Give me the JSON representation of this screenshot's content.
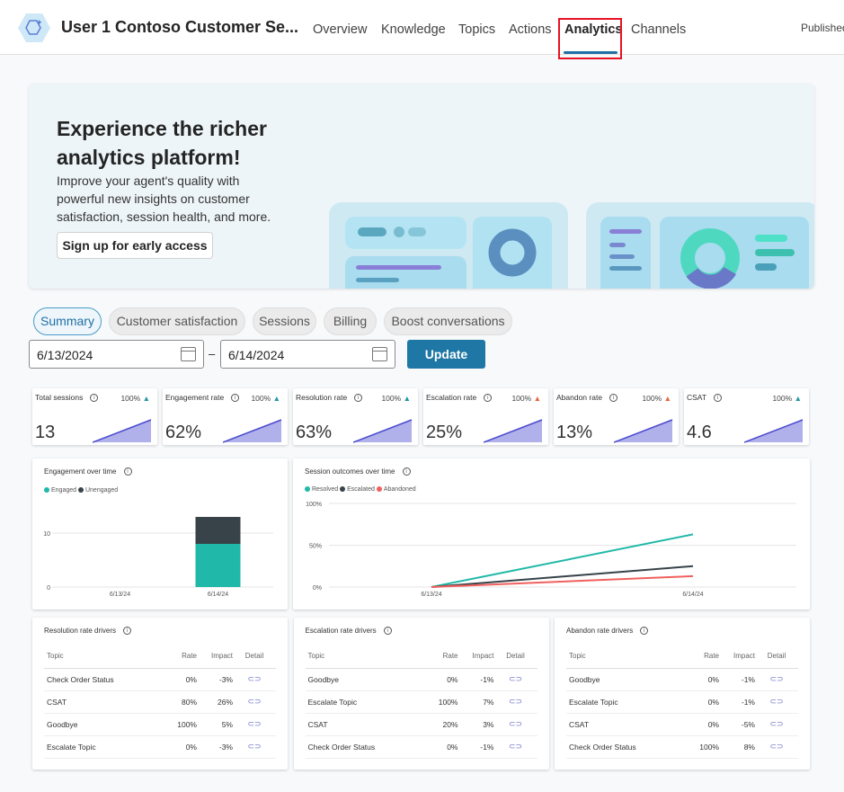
{
  "header": {
    "title": "User 1 Contoso Customer Se...",
    "nav": [
      "Overview",
      "Knowledge",
      "Topics",
      "Actions",
      "Analytics",
      "Channels"
    ],
    "active": "Analytics",
    "status": "Published"
  },
  "banner": {
    "heading": "Experience the richer analytics platform!",
    "body": "Improve your agent's quality with powerful new insights on customer satisfaction, session health, and more.",
    "button": "Sign up for early access"
  },
  "tabs": [
    "Summary",
    "Customer satisfaction",
    "Sessions",
    "Billing",
    "Boost conversations"
  ],
  "dates": {
    "from": "6/13/2024",
    "to": "6/14/2024",
    "separator": "–",
    "update": "Update"
  },
  "kpis": [
    {
      "title": "Total sessions",
      "value": "13",
      "change": "100%",
      "trend": "up",
      "color": "#2196a8"
    },
    {
      "title": "Engagement rate",
      "value": "62%",
      "change": "100%",
      "trend": "up",
      "color": "#2196a8"
    },
    {
      "title": "Resolution rate",
      "value": "63%",
      "change": "100%",
      "trend": "up",
      "color": "#2196a8"
    },
    {
      "title": "Escalation rate",
      "value": "25%",
      "change": "100%",
      "trend": "up",
      "color": "#e8643c"
    },
    {
      "title": "Abandon rate",
      "value": "13%",
      "change": "100%",
      "trend": "up",
      "color": "#e8643c"
    },
    {
      "title": "CSAT",
      "value": "4.6",
      "change": "100%",
      "trend": "up",
      "color": "#2196a8"
    }
  ],
  "chart_data": [
    {
      "type": "bar",
      "title": "Engagement over time",
      "stacked": true,
      "categories": [
        "6/13/24",
        "6/14/24"
      ],
      "series": [
        {
          "name": "Engaged",
          "values": [
            0,
            8
          ],
          "color": "#20b8a8"
        },
        {
          "name": "Unengaged",
          "values": [
            0,
            5
          ],
          "color": "#374349"
        }
      ],
      "yticks": [
        "0",
        "10"
      ],
      "ylim": [
        0,
        13
      ],
      "legend": "top-left"
    },
    {
      "type": "line",
      "title": "Session outcomes over time",
      "x": [
        "6/13/24",
        "6/14/24"
      ],
      "series": [
        {
          "name": "Resolved",
          "values": [
            0,
            63
          ],
          "color": "#20b8a8"
        },
        {
          "name": "Escalated",
          "values": [
            0,
            25
          ],
          "color": "#374349"
        },
        {
          "name": "Abandoned",
          "values": [
            0,
            13
          ],
          "color": "#f0605d"
        }
      ],
      "yticks": [
        "0%",
        "50%",
        "100%"
      ],
      "ylim": [
        0,
        100
      ],
      "legend": "top-left"
    }
  ],
  "drivers": [
    {
      "title": "Resolution rate drivers",
      "cols": [
        "Topic",
        "Rate",
        "Impact",
        "Detail"
      ],
      "rows": [
        [
          "Check Order Status",
          "0%",
          "-3%"
        ],
        [
          "CSAT",
          "80%",
          "26%"
        ],
        [
          "Goodbye",
          "100%",
          "5%"
        ],
        [
          "Escalate Topic",
          "0%",
          "-3%"
        ]
      ]
    },
    {
      "title": "Escalation rate drivers",
      "cols": [
        "Topic",
        "Rate",
        "Impact",
        "Detail"
      ],
      "rows": [
        [
          "Goodbye",
          "0%",
          "-1%"
        ],
        [
          "Escalate Topic",
          "100%",
          "7%"
        ],
        [
          "CSAT",
          "20%",
          "3%"
        ],
        [
          "Check Order Status",
          "0%",
          "-1%"
        ]
      ]
    },
    {
      "title": "Abandon rate drivers",
      "cols": [
        "Topic",
        "Rate",
        "Impact",
        "Detail"
      ],
      "rows": [
        [
          "Goodbye",
          "0%",
          "-1%"
        ],
        [
          "Escalate Topic",
          "0%",
          "-1%"
        ],
        [
          "CSAT",
          "0%",
          "-5%"
        ],
        [
          "Check Order Status",
          "100%",
          "8%"
        ]
      ]
    }
  ]
}
